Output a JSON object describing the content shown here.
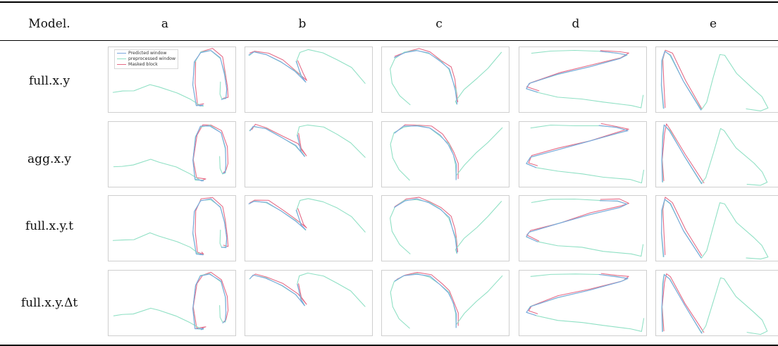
{
  "table": {
    "header_model": "Model.",
    "columns": [
      "a",
      "b",
      "c",
      "d",
      "e"
    ],
    "rows": [
      "full.x.y",
      "agg.x.y",
      "full.x.y.t",
      "full.x.y.Δt"
    ]
  },
  "legend": {
    "items": [
      {
        "label": "Predicted window",
        "color": "#7aa6de"
      },
      {
        "label": "preprocessed window",
        "color": "#8fe0c4"
      },
      {
        "label": "Masked block",
        "color": "#e56a86"
      }
    ]
  },
  "colors": {
    "predicted": "#7aa6de",
    "preprocessed": "#8fe0c4",
    "masked": "#e56a86"
  }
}
